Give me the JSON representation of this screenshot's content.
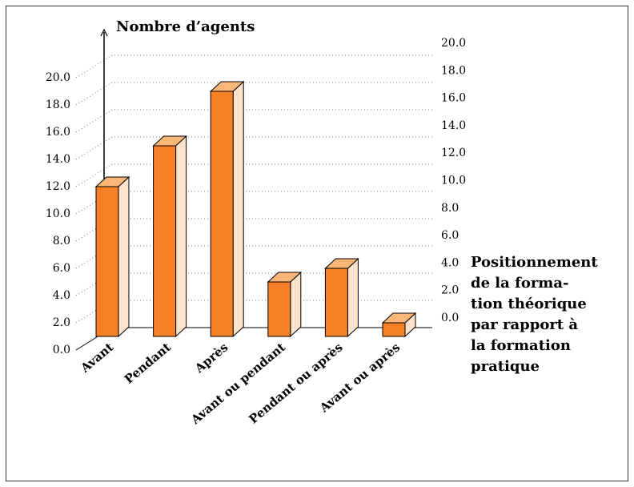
{
  "chart_data": {
    "type": "bar3d",
    "ylabel": "Nombre d’agents",
    "xlabel_lines": [
      "Positionnement",
      "de la forma-",
      "tion théorique",
      "par rapport à",
      "la formation",
      "pratique"
    ],
    "categories": [
      "Avant",
      "Pendant",
      "Après",
      "Avant ou pendant",
      "Pendant ou après",
      "Avant ou après"
    ],
    "values": [
      11,
      14,
      18,
      4,
      5,
      1
    ],
    "color": "#f58025",
    "side_color": "#fde3cb",
    "top_color": "#fbb678",
    "ylim": [
      0,
      20
    ],
    "yticks": [
      {
        "value": 0,
        "label": "0.0"
      },
      {
        "value": 2,
        "label": "2.0"
      },
      {
        "value": 4,
        "label": "4.0"
      },
      {
        "value": 6,
        "label": "6.0"
      },
      {
        "value": 8,
        "label": "8.0"
      },
      {
        "value": 10,
        "label": "10.0"
      },
      {
        "value": 12,
        "label": "12.0"
      },
      {
        "value": 14,
        "label": "14.0"
      },
      {
        "value": 16,
        "label": "16.0"
      },
      {
        "value": 18,
        "label": "18.0"
      },
      {
        "value": 20,
        "label": "20.0"
      }
    ],
    "y2lim": [
      0,
      20
    ],
    "y2ticks": [
      {
        "value": 0,
        "label": "0.0"
      },
      {
        "value": 2,
        "label": "2.0"
      },
      {
        "value": 4,
        "label": "4.0"
      },
      {
        "value": 6,
        "label": "6.0"
      },
      {
        "value": 8,
        "label": "8.0"
      },
      {
        "value": 10,
        "label": "10.0"
      },
      {
        "value": 12,
        "label": "12.0"
      },
      {
        "value": 14,
        "label": "14.0"
      },
      {
        "value": 16,
        "label": "16.0"
      },
      {
        "value": 18,
        "label": "18.0"
      },
      {
        "value": 20,
        "label": "20.0"
      }
    ],
    "grid": true
  }
}
